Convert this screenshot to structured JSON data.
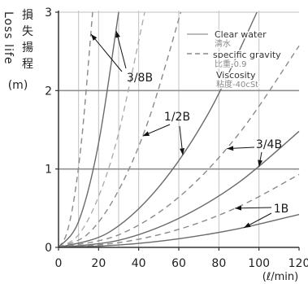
{
  "chart_data": {
    "type": "line",
    "xlabel": "(ℓ/min)",
    "ylabel": {
      "cn": [
        "損",
        "失",
        "揚",
        "程"
      ],
      "en": "Loss life",
      "unit": "(m)"
    },
    "xlim": [
      0,
      120
    ],
    "ylim": [
      0,
      3
    ],
    "x_ticks": [
      0,
      20,
      40,
      60,
      80,
      100,
      120
    ],
    "y_ticks": [
      0,
      1,
      2,
      3
    ],
    "grid": true,
    "legend_position": "top-right",
    "legend": [
      {
        "label": "Clear water",
        "sub": "清水",
        "line": "solid"
      },
      {
        "label": "specific gravity",
        "sub": "比重-0.9",
        "line": "dashed"
      },
      {
        "label": "Viscosity",
        "sub": "粘度-40cSt",
        "line": "none"
      }
    ],
    "series": [
      {
        "size": "3/8B",
        "condition": "specific gravity",
        "line": "dashed",
        "x": [
          0,
          4,
          8,
          12,
          17
        ],
        "y": [
          0,
          0.17,
          0.66,
          1.49,
          3.0
        ]
      },
      {
        "size": "3/8B",
        "condition": "Clear water",
        "line": "solid",
        "x": [
          0,
          10,
          20,
          30
        ],
        "y": [
          0,
          0.33,
          1.33,
          3.0
        ]
      },
      {
        "size": "3/8B",
        "condition": "Viscosity",
        "line": "dashed",
        "x": [
          0,
          10,
          20,
          30,
          43
        ],
        "y": [
          0,
          0.16,
          0.65,
          1.46,
          3.0
        ]
      },
      {
        "size": "1/2B",
        "condition": "specific gravity",
        "line": "dashed",
        "x": [
          0,
          15,
          30,
          45,
          61
        ],
        "y": [
          0,
          0.18,
          0.73,
          1.63,
          3.0
        ]
      },
      {
        "size": "1/2B",
        "condition": "Clear water",
        "line": "solid",
        "x": [
          0,
          25,
          50,
          75,
          99
        ],
        "y": [
          0,
          0.19,
          0.77,
          1.72,
          3.0
        ]
      },
      {
        "size": "3/4B",
        "condition": "specific gravity",
        "line": "dashed",
        "x": [
          0,
          30,
          60,
          90,
          120
        ],
        "y": [
          0,
          0.16,
          0.64,
          1.45,
          2.57
        ]
      },
      {
        "size": "3/4B",
        "condition": "Clear water",
        "line": "solid",
        "x": [
          0,
          30,
          60,
          90,
          120
        ],
        "y": [
          0,
          0.09,
          0.37,
          0.83,
          1.48
        ]
      },
      {
        "size": "1B",
        "condition": "specific gravity",
        "line": "dashed",
        "x": [
          0,
          30,
          60,
          90,
          120
        ],
        "y": [
          0,
          0.06,
          0.23,
          0.52,
          0.93
        ]
      },
      {
        "size": "1B",
        "condition": "Clear water",
        "line": "solid",
        "x": [
          0,
          30,
          60,
          90,
          120
        ],
        "y": [
          0,
          0.03,
          0.11,
          0.24,
          0.42
        ]
      }
    ],
    "annotations": [
      {
        "text": "3/8B",
        "targets": [
          [
            16.2,
            2.72
          ],
          [
            28.8,
            2.76
          ]
        ]
      },
      {
        "text": "1/2B",
        "targets": [
          [
            42,
            1.42
          ],
          [
            62,
            1.18
          ]
        ]
      },
      {
        "text": "3/4B",
        "targets": [
          [
            84,
            1.26
          ],
          [
            100,
            1.03
          ]
        ]
      },
      {
        "text": "1B",
        "targets": [
          [
            88,
            0.5
          ],
          [
            92.5,
            0.25
          ]
        ]
      }
    ]
  }
}
